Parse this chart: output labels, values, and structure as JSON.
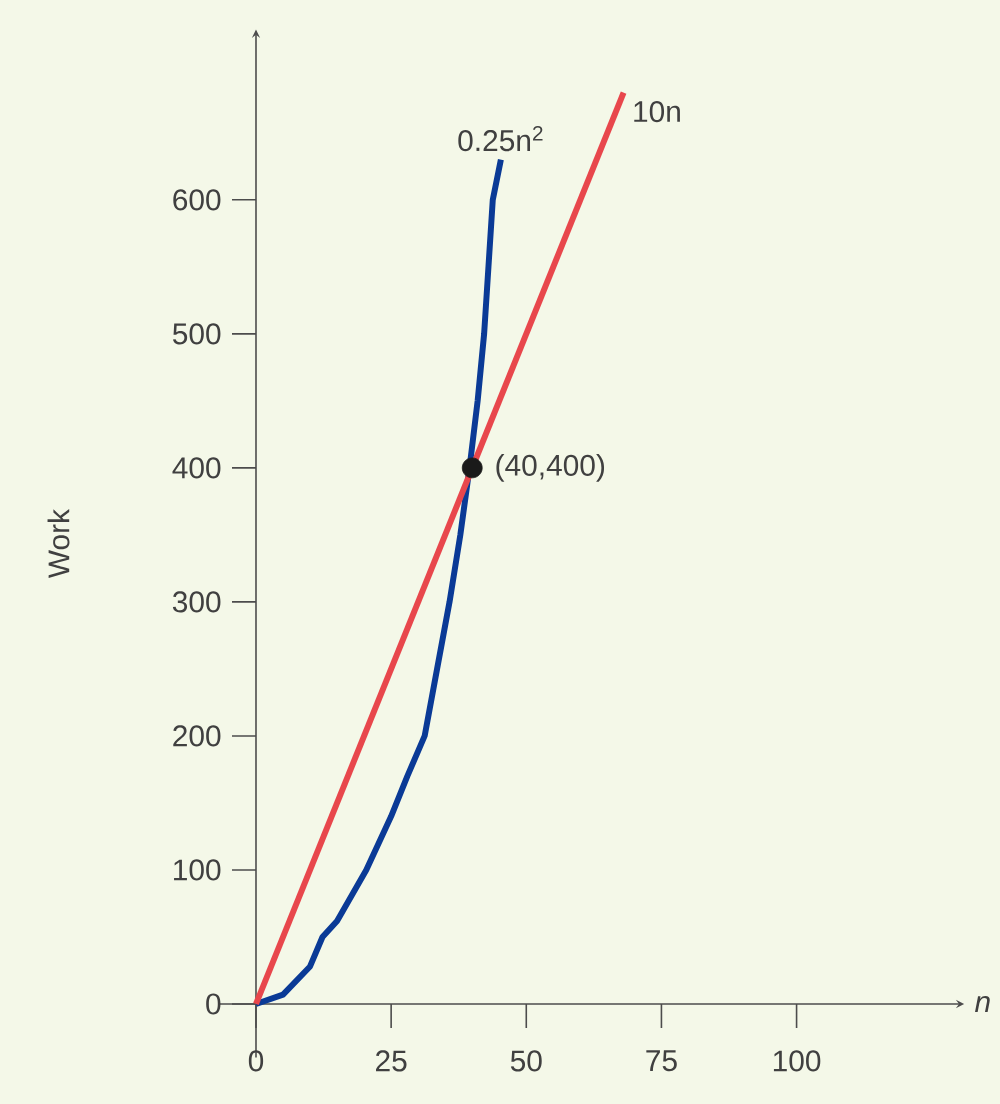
{
  "chart_data": {
    "type": "line",
    "xlabel": "n",
    "ylabel": "Work",
    "xlim": [
      -7,
      131
    ],
    "ylim": [
      -40,
      727
    ],
    "xticks": [
      0,
      25,
      50,
      75,
      100
    ],
    "yticks": [
      0,
      100,
      200,
      300,
      400,
      500,
      600
    ],
    "series": [
      {
        "name": "0.25n$^{2}$",
        "color": "#0a3a96",
        "x": [
          0,
          5,
          10,
          12.3,
          15,
          20.4,
          25,
          28,
          31.2,
          33.5,
          35.8,
          37.8,
          39.5,
          41,
          42.2,
          43,
          43.8,
          45.3
        ],
        "values": [
          0,
          7,
          28,
          50,
          62,
          100,
          140,
          170,
          200,
          250,
          300,
          350,
          400,
          450,
          500,
          550,
          600,
          630
        ]
      },
      {
        "name": "10n",
        "color": "#e8474c",
        "x": [
          0,
          68
        ],
        "values": [
          0,
          680
        ]
      },
      {
        "type": "scatter",
        "color": "#1a1a1a",
        "x": [
          40
        ],
        "values": [
          400
        ]
      }
    ],
    "annotations": [
      {
        "text": "(40,400)",
        "x": 40,
        "y": 400
      }
    ]
  }
}
